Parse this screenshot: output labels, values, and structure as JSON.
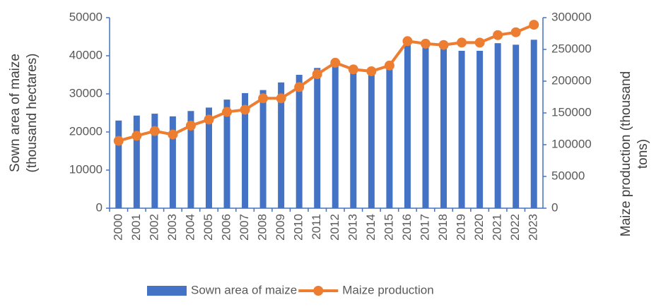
{
  "chart_data": {
    "type": "bar-line",
    "categories": [
      "2000",
      "2001",
      "2002",
      "2003",
      "2004",
      "2005",
      "2006",
      "2007",
      "2008",
      "2009",
      "2010",
      "2011",
      "2012",
      "2013",
      "2014",
      "2015",
      "2016",
      "2017",
      "2018",
      "2019",
      "2020",
      "2021",
      "2022",
      "2023"
    ],
    "y_label": [
      "Sown area of maize",
      "(thousand hectares)"
    ],
    "y2_label": [
      "Maize production (thousand",
      "tons)"
    ],
    "series": [
      {
        "name": "Sown area of maize",
        "type": "bar",
        "axis": "y",
        "color": "#4472c4",
        "values": [
          23000,
          24300,
          24800,
          24100,
          25500,
          26400,
          28500,
          30200,
          31000,
          33000,
          35000,
          36800,
          38000,
          36300,
          35900,
          37700,
          43100,
          42400,
          42100,
          41300,
          41300,
          43300,
          42900,
          44200
        ]
      },
      {
        "name": "Maize production",
        "type": "line",
        "axis": "y2",
        "color": "#ed7d31",
        "values": [
          106000,
          114000,
          121500,
          116000,
          130000,
          139500,
          151600,
          155000,
          173000,
          173000,
          190700,
          211000,
          229000,
          218500,
          215600,
          224600,
          263000,
          259000,
          257000,
          260800,
          260700,
          272500,
          277000,
          288800
        ]
      }
    ],
    "ylim": [
      0,
      50000
    ],
    "yticks": [
      0,
      10000,
      20000,
      30000,
      40000,
      50000
    ],
    "y2lim": [
      0,
      300000
    ],
    "y2ticks": [
      0,
      50000,
      100000,
      150000,
      200000,
      250000,
      300000
    ],
    "legend": "bottom",
    "grid": false,
    "axis_color": "#4472c4"
  }
}
